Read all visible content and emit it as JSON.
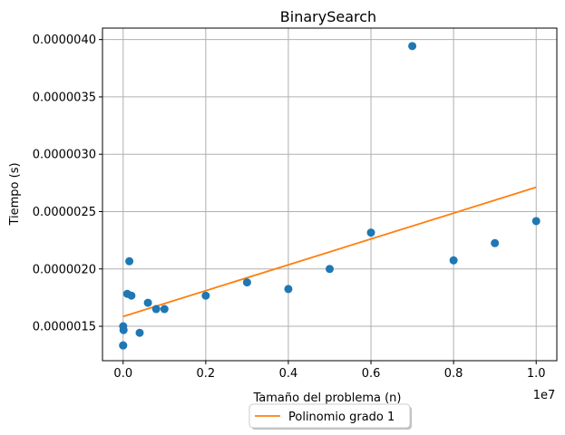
{
  "chart_data": {
    "type": "scatter",
    "title": "BinarySearch",
    "xlabel": "Tamaño del problema (n)",
    "ylabel": "Tiempo (s)",
    "x_offset_label": "1e7",
    "xlim": [
      -500000,
      10500000
    ],
    "ylim": [
      1.2e-06,
      4.1e-06
    ],
    "xticks": [
      0,
      2000000,
      4000000,
      6000000,
      8000000,
      10000000
    ],
    "xtick_labels": [
      "0.0",
      "0.2",
      "0.4",
      "0.6",
      "0.8",
      "1.0"
    ],
    "yticks": [
      1.5e-06,
      2e-06,
      2.5e-06,
      3e-06,
      3.5e-06,
      4e-06
    ],
    "ytick_labels": [
      "0.0000015",
      "0.0000020",
      "0.0000025",
      "0.0000030",
      "0.0000035",
      "0.0000040"
    ],
    "grid": true,
    "legend_position": "bottom-center",
    "series": [
      {
        "kind": "points",
        "color": "#1f77b4",
        "points": [
          [
            10,
            1.333e-06
          ],
          [
            100,
            1.333e-06
          ],
          [
            1000,
            1.5e-06
          ],
          [
            10000,
            1.467e-06
          ],
          [
            100000,
            1.783e-06
          ],
          [
            150000,
            2.067e-06
          ],
          [
            200000,
            1.767e-06
          ],
          [
            400000,
            1.443e-06
          ],
          [
            600000,
            1.705e-06
          ],
          [
            800000,
            1.65e-06
          ],
          [
            1000000,
            1.65e-06
          ],
          [
            2000000,
            1.767e-06
          ],
          [
            3000000,
            1.883e-06
          ],
          [
            4000000,
            1.825e-06
          ],
          [
            5000000,
            2e-06
          ],
          [
            6000000,
            2.317e-06
          ],
          [
            7000000,
            3.943e-06
          ],
          [
            8000000,
            2.075e-06
          ],
          [
            9000000,
            2.225e-06
          ],
          [
            10000000,
            2.417e-06
          ]
        ]
      },
      {
        "kind": "line",
        "name": "Polinomio grado 1",
        "color": "#ff7f0e",
        "points": [
          [
            0,
            1.585e-06
          ],
          [
            10000000,
            2.712e-06
          ]
        ]
      }
    ]
  }
}
